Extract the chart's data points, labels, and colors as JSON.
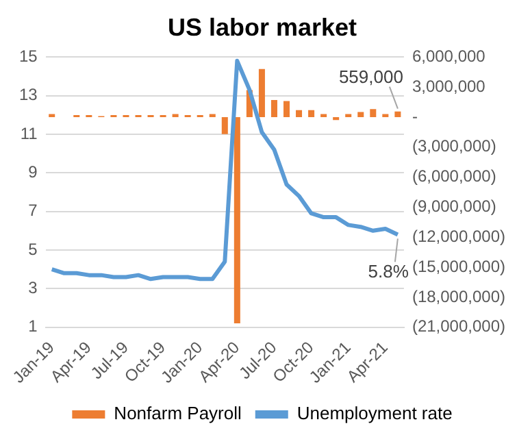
{
  "chart_data": {
    "type": "bar",
    "title": "US labor market",
    "categories": [
      "Jan-19",
      null,
      null,
      "Apr-19",
      null,
      null,
      "Jul-19",
      null,
      null,
      "Oct-19",
      null,
      null,
      "Jan-20",
      null,
      null,
      "Apr-20",
      null,
      null,
      "Jul-20",
      null,
      null,
      "Oct-20",
      null,
      null,
      "Jan-21",
      null,
      null,
      "Apr-21",
      null
    ],
    "series": [
      {
        "name": "Nonfarm Payroll",
        "axis": "y2",
        "color": "#ed7d31",
        "values": [
          300000,
          0,
          200000,
          200000,
          100000,
          200000,
          200000,
          200000,
          200000,
          200000,
          300000,
          200000,
          200000,
          300000,
          -1700000,
          -20600000,
          2700000,
          4800000,
          1700000,
          1600000,
          700000,
          700000,
          300000,
          -300000,
          300000,
          500000,
          800000,
          300000,
          559000
        ],
        "value_labels": [
          null,
          null,
          null,
          null,
          null,
          null,
          null,
          null,
          null,
          null,
          null,
          null,
          null,
          null,
          null,
          null,
          null,
          null,
          null,
          null,
          null,
          null,
          null,
          null,
          null,
          null,
          null,
          null,
          "559,000"
        ]
      },
      {
        "name": "Unemployment rate",
        "type": "line",
        "color": "#5b9bd5",
        "values": [
          4.0,
          3.8,
          3.8,
          3.7,
          3.7,
          3.6,
          3.6,
          3.7,
          3.5,
          3.6,
          3.6,
          3.6,
          3.5,
          3.5,
          4.4,
          14.8,
          13.3,
          11.1,
          10.2,
          8.4,
          7.8,
          6.9,
          6.7,
          6.7,
          6.3,
          6.2,
          6.0,
          6.1,
          5.8
        ],
        "value_labels": [
          null,
          null,
          null,
          null,
          null,
          null,
          null,
          null,
          null,
          null,
          null,
          null,
          null,
          null,
          null,
          null,
          null,
          null,
          null,
          null,
          null,
          null,
          null,
          null,
          null,
          null,
          null,
          null,
          "5.8%"
        ]
      }
    ],
    "ylim": [
      1,
      15
    ],
    "yticks": [
      1,
      3,
      5,
      7,
      9,
      11,
      13,
      15
    ],
    "y2lim": [
      -21000000,
      6000000
    ],
    "y2ticks": [
      {
        "value": 6000000,
        "label": "6,000,000"
      },
      {
        "value": 3000000,
        "label": "3,000,000"
      },
      {
        "value": 0,
        "label": "-"
      },
      {
        "value": -3000000,
        "label": "(3,000,000)"
      },
      {
        "value": -6000000,
        "label": "(6,000,000)"
      },
      {
        "value": -9000000,
        "label": "(9,000,000)"
      },
      {
        "value": -12000000,
        "label": "(12,000,000)"
      },
      {
        "value": -15000000,
        "label": "(15,000,000)"
      },
      {
        "value": -18000000,
        "label": "(18,000,000)"
      },
      {
        "value": -21000000,
        "label": "(21,000,000)"
      }
    ],
    "grid": "y",
    "legend": "bottom",
    "marker": "none",
    "line_style": "solid"
  }
}
